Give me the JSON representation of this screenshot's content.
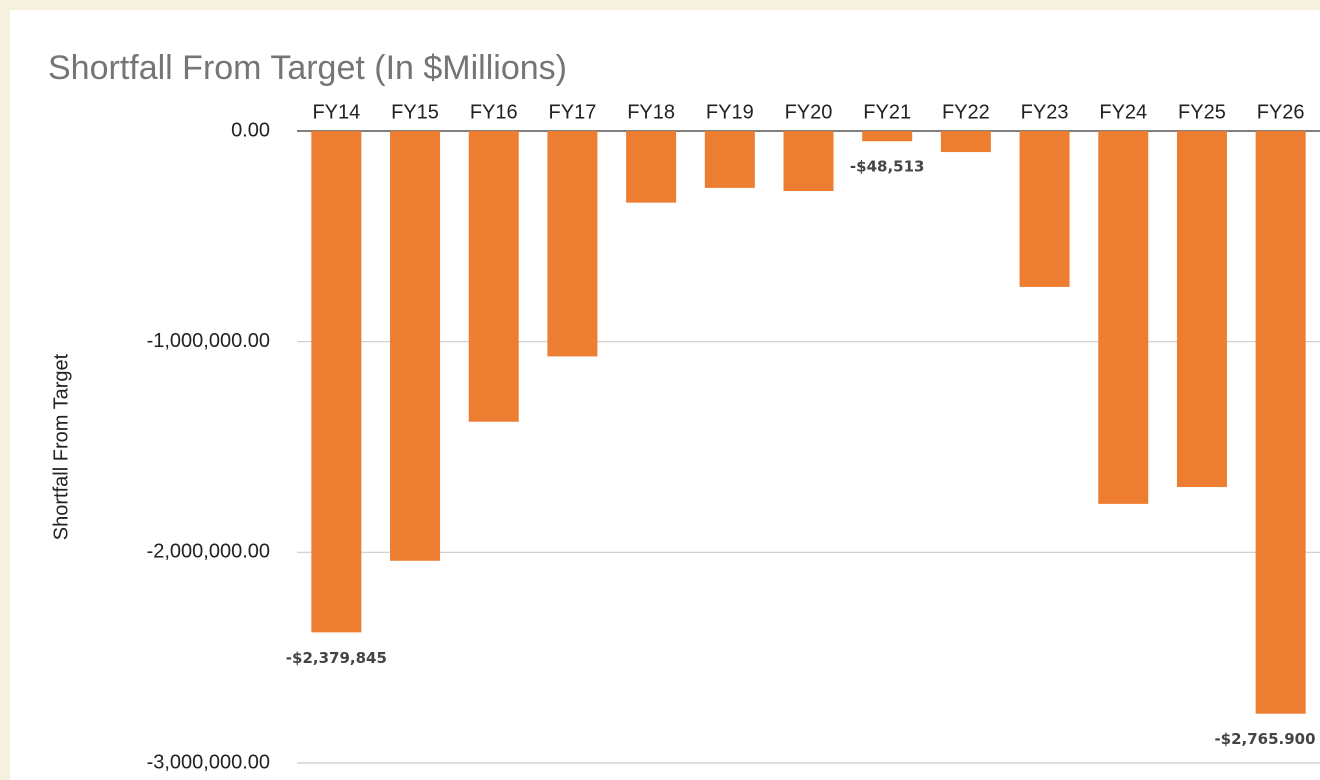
{
  "chart_data": {
    "type": "bar",
    "title": "Shortfall From Target (In $Millions)",
    "y_label": "Shortfall From Target",
    "categories": [
      "FY14",
      "FY15",
      "FY16",
      "FY17",
      "FY18",
      "FY19",
      "FY20",
      "FY21",
      "FY22",
      "FY23",
      "FY24",
      "FY25",
      "FY26"
    ],
    "values": [
      -2379845,
      -2040000,
      -1380000,
      -1070000,
      -340000,
      -270000,
      -285000,
      -48513,
      -100000,
      -740000,
      -1770000,
      -1690000,
      -2765900
    ],
    "value_labels": [
      "-$2,379,845",
      null,
      null,
      null,
      null,
      null,
      null,
      "-$48,513",
      null,
      null,
      null,
      null,
      "-$2,765.900"
    ],
    "color": "#ed7d31",
    "ylim": [
      -3000000,
      0
    ],
    "yticks": [
      {
        "value": 0,
        "label": "0.00"
      },
      {
        "value": -1000000,
        "label": "-1,000,000.00"
      },
      {
        "value": -2000000,
        "label": "-2,000,000.00"
      },
      {
        "value": -3000000,
        "label": "-3,000,000.00"
      }
    ],
    "grid": true
  }
}
